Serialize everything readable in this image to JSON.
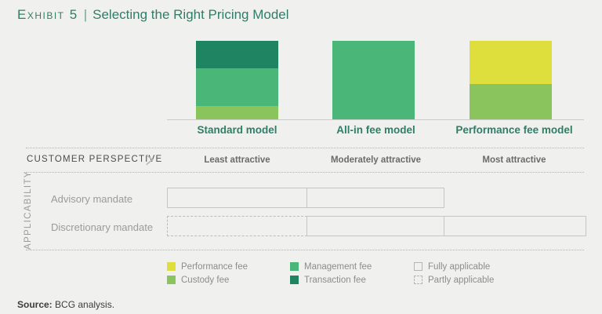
{
  "header": {
    "exhibit_label": "Exhibit 5",
    "separator": "|",
    "title": "Selecting the Right Pricing Model"
  },
  "colors": {
    "accent_teal": "#2e7e68",
    "background": "#f0f0ee",
    "fees": {
      "Performance fee": "#dedf3c",
      "Custody fee": "#89c45d",
      "Management fee": "#4ab678",
      "Transaction fee": "#1e8461"
    },
    "box_border": "#c6c6c4",
    "dotted_line": "#b3b3b1"
  },
  "chart_data": {
    "type": "bar",
    "stacked": true,
    "title": "Selecting the Right Pricing Model",
    "xlabel": "",
    "ylabel": "",
    "ylim": [
      0,
      100
    ],
    "value_axis_shown": false,
    "unit": "estimated % of bar height",
    "categories": [
      "Standard model",
      "All-in fee model",
      "Performance fee model"
    ],
    "bars": [
      {
        "label": "Standard model",
        "segments_top_to_bottom": [
          {
            "name": "Transaction fee",
            "value": 35
          },
          {
            "name": "Management fee",
            "value": 48
          },
          {
            "name": "Custody fee",
            "value": 17
          }
        ]
      },
      {
        "label": "All-in fee model",
        "segments_top_to_bottom": [
          {
            "name": "Management fee",
            "value": 100
          }
        ]
      },
      {
        "label": "Performance fee model",
        "segments_top_to_bottom": [
          {
            "name": "Performance fee",
            "value": 55
          },
          {
            "name": "Custody fee",
            "value": 45
          }
        ]
      }
    ]
  },
  "customer_perspective": {
    "label": "CUSTOMER PERSPECTIVE",
    "ratings": [
      "Least attractive",
      "Moderately attractive",
      "Most attractive"
    ]
  },
  "applicability": {
    "section_label": "APPLICABILITY",
    "rows": [
      {
        "label": "Advisory mandate",
        "cells": [
          "fully",
          "fully",
          "none"
        ]
      },
      {
        "label": "Discretionary mandate",
        "cells": [
          "partly",
          "fully",
          "fully"
        ]
      }
    ]
  },
  "legend": {
    "items": [
      {
        "label": "Performance fee",
        "swatch": "Performance fee"
      },
      {
        "label": "Custody fee",
        "swatch": "Custody fee"
      },
      {
        "label": "Management fee",
        "swatch": "Management fee"
      },
      {
        "label": "Transaction fee",
        "swatch": "Transaction fee"
      },
      {
        "label": "Fully applicable",
        "swatch": "outline"
      },
      {
        "label": "Partly applicable",
        "swatch": "dashed"
      }
    ]
  },
  "source": {
    "prefix": "Source:",
    "text": " BCG analysis."
  }
}
